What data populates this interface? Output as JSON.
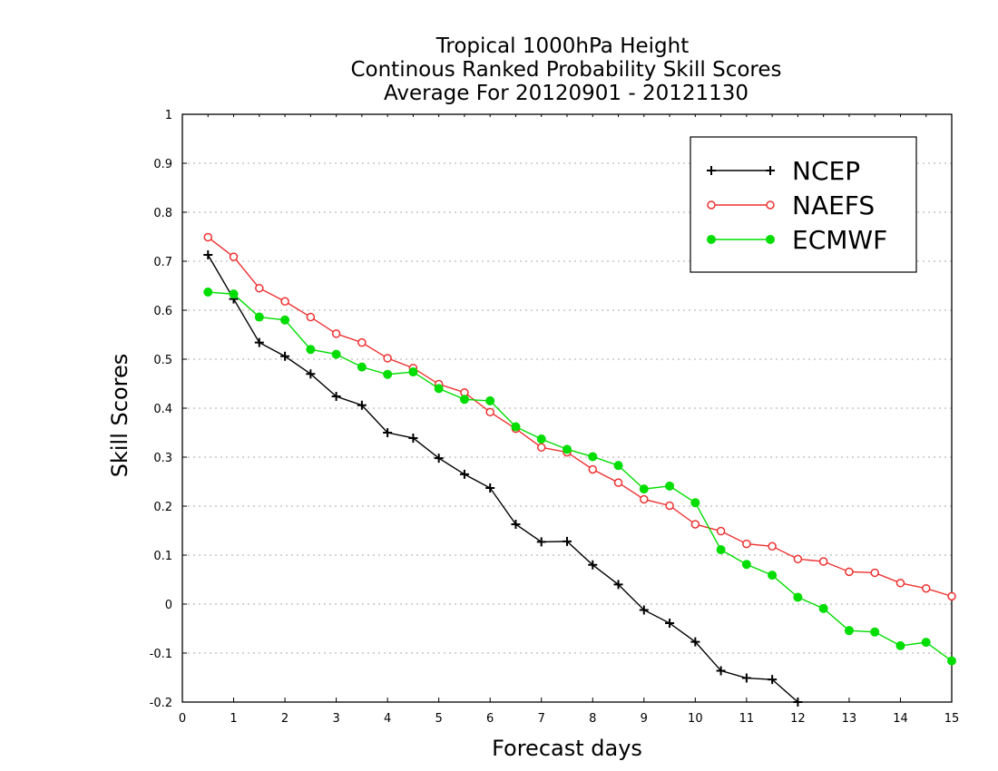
{
  "chart_data": {
    "type": "line",
    "title_lines": [
      "Tropical 1000hPa Height",
      "Continous Ranked Probability Skill Scores",
      "Average For 20120901 - 20121130"
    ],
    "xlabel": "Forecast days",
    "ylabel": "Skill Scores",
    "xlim": [
      0,
      15
    ],
    "ylim": [
      -0.2,
      1
    ],
    "x_ticks": [
      0,
      1,
      2,
      3,
      4,
      5,
      6,
      7,
      8,
      9,
      10,
      11,
      12,
      13,
      14,
      15
    ],
    "y_ticks": [
      -0.2,
      -0.1,
      0,
      0.1,
      0.2,
      0.3,
      0.4,
      0.5,
      0.6,
      0.7,
      0.8,
      0.9,
      1
    ],
    "y_tick_labels": [
      "-0.2",
      "-0.1",
      "0",
      "0.1",
      "0.2",
      "0.3",
      "0.4",
      "0.5",
      "0.6",
      "0.7",
      "0.8",
      "0.9",
      "1"
    ],
    "grid": "horizontal dotted",
    "legend_position": "top-right",
    "x": [
      0.5,
      1,
      1.5,
      2,
      2.5,
      3,
      3.5,
      4,
      4.5,
      5,
      5.5,
      6,
      6.5,
      7,
      7.5,
      8,
      8.5,
      9,
      9.5,
      10,
      10.5,
      11,
      11.5,
      12,
      12.5,
      13,
      13.5,
      14,
      14.5,
      15
    ],
    "series": [
      {
        "name": "NCEP",
        "color": "#000000",
        "marker": "plus",
        "values": [
          0.713,
          0.623,
          0.534,
          0.506,
          0.47,
          0.424,
          0.406,
          0.35,
          0.339,
          0.298,
          0.265,
          0.237,
          0.163,
          0.127,
          0.128,
          0.08,
          0.04,
          -0.012,
          -0.039,
          -0.077,
          -0.136,
          -0.151,
          -0.154,
          -0.2,
          null,
          null,
          null,
          null,
          null,
          null
        ]
      },
      {
        "name": "NAEFS",
        "color": "#ee3030",
        "marker": "open-circle",
        "values": [
          0.749,
          0.709,
          0.645,
          0.618,
          0.586,
          0.552,
          0.534,
          0.502,
          0.482,
          0.449,
          0.432,
          0.392,
          0.358,
          0.32,
          0.31,
          0.275,
          0.248,
          0.214,
          0.201,
          0.163,
          0.149,
          0.123,
          0.118,
          0.092,
          0.087,
          0.066,
          0.064,
          0.043,
          0.032,
          0.016
        ]
      },
      {
        "name": "ECMWF",
        "color": "#00dd00",
        "marker": "filled-circle",
        "values": [
          0.637,
          0.633,
          0.586,
          0.58,
          0.52,
          0.51,
          0.484,
          0.469,
          0.474,
          0.44,
          0.418,
          0.415,
          0.362,
          0.337,
          0.316,
          0.301,
          0.283,
          0.235,
          0.241,
          0.207,
          0.111,
          0.081,
          0.059,
          0.014,
          -0.009,
          -0.054,
          -0.057,
          -0.085,
          -0.078,
          -0.116
        ]
      }
    ]
  }
}
